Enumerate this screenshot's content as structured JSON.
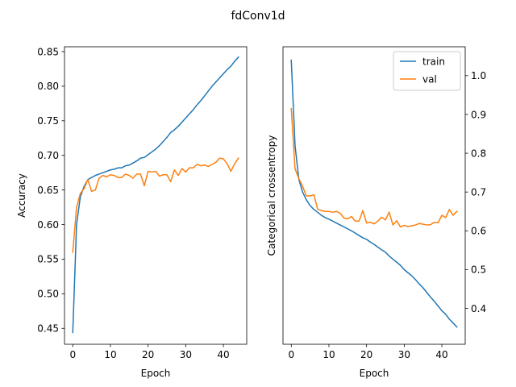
{
  "figure": {
    "suptitle": "fdConv1d"
  },
  "chart_data": [
    {
      "type": "line",
      "title": "",
      "xlabel": "Epoch",
      "ylabel": "Accuracy",
      "xlim": [
        -2.2,
        46.2
      ],
      "ylim": [
        0.427,
        0.857
      ],
      "xticks": [
        0,
        10,
        20,
        30,
        40
      ],
      "yticks": [
        0.45,
        0.5,
        0.55,
        0.6,
        0.65,
        0.7,
        0.75,
        0.8,
        0.85
      ],
      "ytick_labels": [
        "0.45",
        "0.50",
        "0.55",
        "0.60",
        "0.65",
        "0.70",
        "0.75",
        "0.80",
        "0.85"
      ],
      "y_axis_side": "left",
      "grid": false,
      "legend": null,
      "x": [
        0,
        1,
        2,
        3,
        4,
        5,
        6,
        7,
        8,
        9,
        10,
        11,
        12,
        13,
        14,
        15,
        16,
        17,
        18,
        19,
        20,
        21,
        22,
        23,
        24,
        25,
        26,
        27,
        28,
        29,
        30,
        31,
        32,
        33,
        34,
        35,
        36,
        37,
        38,
        39,
        40,
        41,
        42,
        43,
        44
      ],
      "series": [
        {
          "name": "train",
          "color": "#1f77b4",
          "values": [
            0.444,
            0.6,
            0.64,
            0.655,
            0.665,
            0.668,
            0.671,
            0.673,
            0.675,
            0.677,
            0.679,
            0.68,
            0.682,
            0.682,
            0.685,
            0.686,
            0.689,
            0.692,
            0.696,
            0.697,
            0.701,
            0.705,
            0.709,
            0.714,
            0.72,
            0.726,
            0.733,
            0.737,
            0.742,
            0.748,
            0.754,
            0.76,
            0.766,
            0.773,
            0.779,
            0.786,
            0.793,
            0.8,
            0.806,
            0.812,
            0.818,
            0.824,
            0.829,
            0.836,
            0.842
          ]
        },
        {
          "name": "val",
          "color": "#ff7f0e",
          "values": [
            0.56,
            0.625,
            0.645,
            0.652,
            0.665,
            0.648,
            0.65,
            0.667,
            0.671,
            0.669,
            0.672,
            0.671,
            0.668,
            0.668,
            0.673,
            0.671,
            0.667,
            0.673,
            0.673,
            0.656,
            0.677,
            0.676,
            0.677,
            0.67,
            0.672,
            0.672,
            0.662,
            0.679,
            0.671,
            0.681,
            0.676,
            0.682,
            0.682,
            0.687,
            0.685,
            0.686,
            0.684,
            0.687,
            0.69,
            0.696,
            0.695,
            0.688,
            0.677,
            0.688,
            0.696
          ]
        }
      ]
    },
    {
      "type": "line",
      "title": "",
      "xlabel": "Epoch",
      "ylabel": "Categorical crossentropy",
      "xlim": [
        -2.2,
        46.2
      ],
      "ylim": [
        0.3075,
        1.0745
      ],
      "xticks": [
        0,
        10,
        20,
        30,
        40
      ],
      "yticks": [
        0.4,
        0.5,
        0.6,
        0.7,
        0.8,
        0.9,
        1.0
      ],
      "ytick_labels": [
        "0.4",
        "0.5",
        "0.6",
        "0.7",
        "0.8",
        "0.9",
        "1.0"
      ],
      "y_axis_side": "right",
      "grid": false,
      "legend": {
        "position": "top-right",
        "entries": [
          "train",
          "val"
        ]
      },
      "x": [
        0,
        1,
        2,
        3,
        4,
        5,
        6,
        7,
        8,
        9,
        10,
        11,
        12,
        13,
        14,
        15,
        16,
        17,
        18,
        19,
        20,
        21,
        22,
        23,
        24,
        25,
        26,
        27,
        28,
        29,
        30,
        31,
        32,
        33,
        34,
        35,
        36,
        37,
        38,
        39,
        40,
        41,
        42,
        43,
        44
      ],
      "series": [
        {
          "name": "train",
          "color": "#1f77b4",
          "values": [
            1.04,
            0.82,
            0.733,
            0.7,
            0.68,
            0.665,
            0.655,
            0.648,
            0.64,
            0.634,
            0.63,
            0.625,
            0.62,
            0.615,
            0.61,
            0.605,
            0.6,
            0.594,
            0.588,
            0.582,
            0.578,
            0.571,
            0.565,
            0.558,
            0.551,
            0.545,
            0.535,
            0.527,
            0.519,
            0.511,
            0.5,
            0.492,
            0.484,
            0.474,
            0.463,
            0.453,
            0.441,
            0.429,
            0.418,
            0.406,
            0.394,
            0.385,
            0.372,
            0.362,
            0.352
          ]
        },
        {
          "name": "val",
          "color": "#ff7f0e",
          "values": [
            0.915,
            0.76,
            0.735,
            0.715,
            0.69,
            0.69,
            0.693,
            0.656,
            0.652,
            0.65,
            0.65,
            0.648,
            0.65,
            0.645,
            0.633,
            0.631,
            0.637,
            0.625,
            0.625,
            0.652,
            0.62,
            0.622,
            0.618,
            0.625,
            0.635,
            0.628,
            0.648,
            0.615,
            0.626,
            0.61,
            0.614,
            0.611,
            0.613,
            0.615,
            0.619,
            0.617,
            0.615,
            0.616,
            0.622,
            0.621,
            0.64,
            0.634,
            0.655,
            0.64,
            0.65
          ]
        }
      ]
    }
  ]
}
